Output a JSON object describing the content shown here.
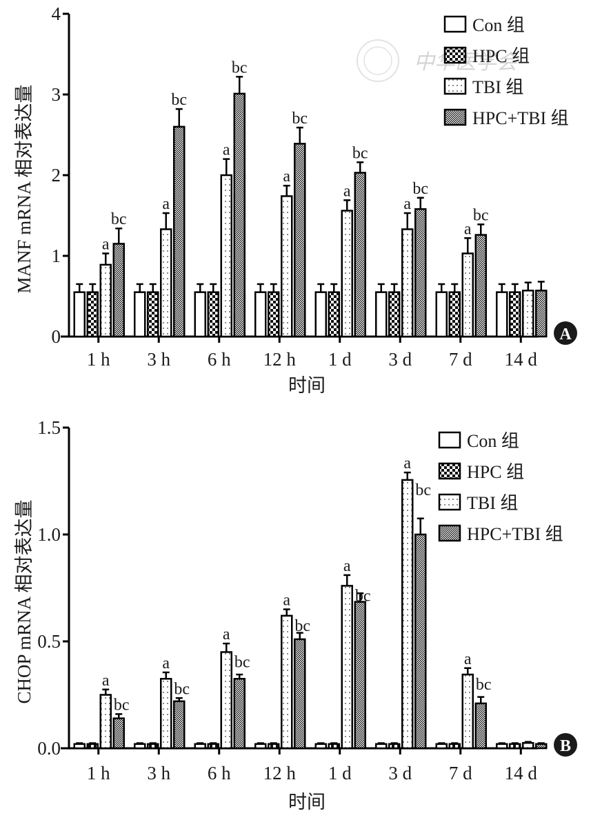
{
  "figure": {
    "watermark_text": "中华医学会",
    "panels": [
      "A",
      "B"
    ]
  },
  "legend": {
    "items": [
      {
        "key": "con",
        "label": "Con 组",
        "pattern": "open"
      },
      {
        "key": "hpc",
        "label": "HPC 组",
        "pattern": "checker"
      },
      {
        "key": "tbi",
        "label": "TBI 组",
        "pattern": "dots"
      },
      {
        "key": "hpctbi",
        "label": "HPC+TBI 组",
        "pattern": "fine-checker"
      }
    ]
  },
  "chart_data": [
    {
      "panel": "A",
      "type": "bar",
      "title": "",
      "xlabel": "时间",
      "ylabel": "MANF mRNA 相对表达量",
      "ylim": [
        0,
        4
      ],
      "yticks": [
        "0",
        "1",
        "2",
        "3",
        "4"
      ],
      "ytick_values": [
        0,
        1,
        2,
        3,
        4
      ],
      "grid": false,
      "legend_position": "top-right",
      "categories": [
        "1 h",
        "3 h",
        "6 h",
        "12 h",
        "1 d",
        "3 d",
        "7 d",
        "14 d"
      ],
      "series": [
        {
          "name": "Con 组",
          "values": [
            0.55,
            0.55,
            0.55,
            0.55,
            0.55,
            0.55,
            0.55,
            0.55
          ],
          "errors": [
            0.1,
            0.1,
            0.1,
            0.1,
            0.1,
            0.1,
            0.1,
            0.1
          ],
          "labels": [
            "",
            "",
            "",
            "",
            "",
            "",
            "",
            ""
          ]
        },
        {
          "name": "HPC 组",
          "values": [
            0.55,
            0.55,
            0.55,
            0.55,
            0.55,
            0.55,
            0.55,
            0.55
          ],
          "errors": [
            0.1,
            0.1,
            0.1,
            0.1,
            0.1,
            0.1,
            0.1,
            0.1
          ],
          "labels": [
            "",
            "",
            "",
            "",
            "",
            "",
            "",
            ""
          ]
        },
        {
          "name": "TBI 组",
          "values": [
            0.89,
            1.33,
            2.0,
            1.74,
            1.56,
            1.33,
            1.03,
            0.57
          ],
          "errors": [
            0.14,
            0.2,
            0.2,
            0.13,
            0.13,
            0.2,
            0.19,
            0.1
          ],
          "labels": [
            "a",
            "a",
            "a",
            "a",
            "a",
            "a",
            "a",
            ""
          ]
        },
        {
          "name": "HPC+TBI 组",
          "values": [
            1.15,
            2.6,
            3.01,
            2.39,
            2.03,
            1.58,
            1.26,
            0.57
          ],
          "errors": [
            0.19,
            0.22,
            0.21,
            0.2,
            0.13,
            0.14,
            0.13,
            0.11
          ],
          "labels": [
            "bc",
            "bc",
            "bc",
            "bc",
            "bc",
            "bc",
            "bc",
            ""
          ]
        }
      ]
    },
    {
      "panel": "B",
      "type": "bar",
      "title": "",
      "xlabel": "时间",
      "ylabel": "CHOP mRNA 相对表达量",
      "ylim": [
        0,
        1.5
      ],
      "yticks": [
        "0.0",
        "0.5",
        "1.0",
        "1.5"
      ],
      "ytick_values": [
        0,
        0.5,
        1.0,
        1.5
      ],
      "grid": false,
      "legend_position": "top-right",
      "categories": [
        "1 h",
        "3 h",
        "6 h",
        "12 h",
        "1 d",
        "3 d",
        "7 d",
        "14 d"
      ],
      "series": [
        {
          "name": "Con 组",
          "values": [
            0.02,
            0.02,
            0.02,
            0.02,
            0.02,
            0.02,
            0.02,
            0.02
          ],
          "errors": [
            0.004,
            0.004,
            0.004,
            0.004,
            0.004,
            0.004,
            0.004,
            0.004
          ],
          "labels": [
            "",
            "",
            "",
            "",
            "",
            "",
            "",
            ""
          ]
        },
        {
          "name": "HPC 组",
          "values": [
            0.02,
            0.02,
            0.02,
            0.02,
            0.02,
            0.02,
            0.02,
            0.02
          ],
          "errors": [
            0.004,
            0.004,
            0.004,
            0.004,
            0.004,
            0.004,
            0.004,
            0.004
          ],
          "labels": [
            "",
            "",
            "",
            "",
            "",
            "",
            "",
            ""
          ]
        },
        {
          "name": "TBI 组",
          "values": [
            0.25,
            0.325,
            0.45,
            0.62,
            0.76,
            1.255,
            0.345,
            0.025
          ],
          "errors": [
            0.025,
            0.03,
            0.04,
            0.03,
            0.05,
            0.035,
            0.03,
            0.005
          ],
          "labels": [
            "a",
            "a",
            "a",
            "a",
            "a",
            "a",
            "a",
            ""
          ]
        },
        {
          "name": "HPC+TBI 组",
          "values": [
            0.14,
            0.22,
            0.325,
            0.51,
            0.685,
            1.0,
            0.21,
            0.02
          ],
          "errors": [
            0.02,
            0.015,
            0.02,
            0.03,
            0.04,
            0.075,
            0.03,
            0.004
          ],
          "labels": [
            "bc",
            "bc",
            "bc",
            "bc",
            "bc",
            "bc",
            "bc",
            ""
          ]
        }
      ]
    }
  ]
}
